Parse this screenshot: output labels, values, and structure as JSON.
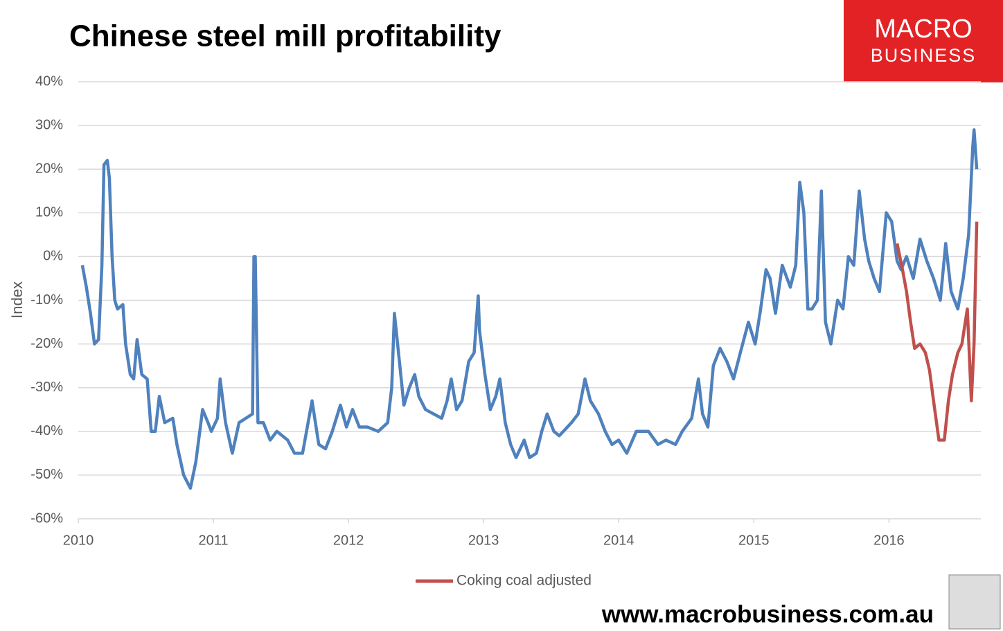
{
  "chart_data": {
    "type": "line",
    "title": "Chinese steel mill profitability",
    "ylabel": "Index",
    "xlim": [
      2010,
      2016.68
    ],
    "xticks": [
      2010,
      2011,
      2012,
      2013,
      2014,
      2015,
      2016
    ],
    "ylim": [
      -60,
      40
    ],
    "yticks": [
      {
        "value": 40,
        "label": "40%"
      },
      {
        "value": 30,
        "label": "30%"
      },
      {
        "value": 20,
        "label": "20%"
      },
      {
        "value": 10,
        "label": "10%"
      },
      {
        "value": 0,
        "label": "0%"
      },
      {
        "value": -10,
        "label": "-10%"
      },
      {
        "value": -20,
        "label": "-20%"
      },
      {
        "value": -30,
        "label": "-30%"
      },
      {
        "value": -40,
        "label": "-40%"
      },
      {
        "value": -50,
        "label": "-50%"
      },
      {
        "value": -60,
        "label": "-60%"
      }
    ],
    "grid": true,
    "legend": "bottom",
    "series": [
      {
        "color": "#4f81bd",
        "x": [
          2010.03,
          2010.06,
          2010.09,
          2010.12,
          2010.15,
          2010.175,
          2010.19,
          2010.215,
          2010.23,
          2010.25,
          2010.27,
          2010.29,
          2010.33,
          2010.35,
          2010.385,
          2010.41,
          2010.435,
          2010.47,
          2010.51,
          2010.54,
          2010.57,
          2010.6,
          2010.64,
          2010.7,
          2010.73,
          2010.78,
          2010.83,
          2010.87,
          2010.92,
          2010.96,
          2010.985,
          2011.03,
          2011.05,
          2011.09,
          2011.14,
          2011.19,
          2011.24,
          2011.29,
          2011.3,
          2011.31,
          2011.33,
          2011.37,
          2011.42,
          2011.47,
          2011.55,
          2011.6,
          2011.66,
          2011.73,
          2011.78,
          2011.83,
          2011.88,
          2011.94,
          2011.985,
          2012.03,
          2012.08,
          2012.14,
          2012.22,
          2012.29,
          2012.32,
          2012.34,
          2012.37,
          2012.41,
          2012.45,
          2012.49,
          2012.52,
          2012.57,
          2012.63,
          2012.69,
          2012.73,
          2012.76,
          2012.8,
          2012.84,
          2012.89,
          2012.93,
          2012.96,
          2012.97,
          2013.01,
          2013.05,
          2013.09,
          2013.12,
          2013.16,
          2013.2,
          2013.24,
          2013.3,
          2013.34,
          2013.39,
          2013.43,
          2013.47,
          2013.52,
          2013.56,
          2013.65,
          2013.7,
          2013.75,
          2013.79,
          2013.85,
          2013.9,
          2013.95,
          2014.0,
          2014.06,
          2014.13,
          2014.22,
          2014.29,
          2014.35,
          2014.42,
          2014.47,
          2014.54,
          2014.59,
          2014.62,
          2014.66,
          2014.7,
          2014.75,
          2014.8,
          2014.85,
          2014.9,
          2014.96,
          2015.01,
          2015.05,
          2015.09,
          2015.12,
          2015.16,
          2015.21,
          2015.27,
          2015.31,
          2015.34,
          2015.37,
          2015.4,
          2015.43,
          2015.47,
          2015.5,
          2015.53,
          2015.57,
          2015.62,
          2015.66,
          2015.7,
          2015.74,
          2015.78,
          2015.82,
          2015.85,
          2015.89,
          2015.93,
          2015.98,
          2016.02,
          2016.06,
          2016.09,
          2016.13,
          2016.18,
          2016.23,
          2016.28,
          2016.33,
          2016.38,
          2016.42,
          2016.46,
          2016.51,
          2016.55,
          2016.59,
          2016.62,
          2016.63,
          2016.65
        ],
        "values": [
          -2,
          -7,
          -13,
          -20,
          -19,
          -2,
          21,
          22,
          18,
          0,
          -10,
          -12,
          -11,
          -20,
          -27,
          -28,
          -19,
          -27,
          -28,
          -40,
          -40,
          -32,
          -38,
          -37,
          -43,
          -50,
          -53,
          -47,
          -35,
          -38,
          -40,
          -37,
          -28,
          -38,
          -45,
          -38,
          -37,
          -36,
          0,
          0,
          -38,
          -38,
          -42,
          -40,
          -42,
          -45,
          -45,
          -33,
          -43,
          -44,
          -40,
          -34,
          -39,
          -35,
          -39,
          -39,
          -40,
          -38,
          -30,
          -13,
          -22,
          -34,
          -30,
          -27,
          -32,
          -35,
          -36,
          -37,
          -33,
          -28,
          -35,
          -33,
          -24,
          -22,
          -9,
          -17,
          -27,
          -35,
          -32,
          -28,
          -38,
          -43,
          -46,
          -42,
          -46,
          -45,
          -40,
          -36,
          -40,
          -41,
          -38,
          -36,
          -28,
          -33,
          -36,
          -40,
          -43,
          -42,
          -45,
          -40,
          -40,
          -43,
          -42,
          -43,
          -40,
          -37,
          -28,
          -36,
          -39,
          -25,
          -21,
          -24,
          -28,
          -22,
          -15,
          -20,
          -12,
          -3,
          -5,
          -13,
          -2,
          -7,
          -2,
          17,
          10,
          -12,
          -12,
          -10,
          15,
          -15,
          -20,
          -10,
          -12,
          0,
          -2,
          15,
          4,
          -1,
          -5,
          -8,
          10,
          8,
          -1,
          -3,
          0,
          -5,
          4,
          -1,
          -5,
          -10,
          3,
          -8,
          -12,
          -5,
          5,
          25,
          29,
          20
        ]
      },
      {
        "name": "Coking coal adjusted",
        "color": "#c0504d",
        "x": [
          2016.06,
          2016.1,
          2016.13,
          2016.16,
          2016.19,
          2016.23,
          2016.27,
          2016.3,
          2016.33,
          2016.37,
          2016.41,
          2016.44,
          2016.47,
          2016.51,
          2016.54,
          2016.58,
          2016.61,
          2016.63,
          2016.65
        ],
        "values": [
          3,
          -3,
          -8,
          -15,
          -21,
          -20,
          -22,
          -26,
          -33,
          -42,
          -42,
          -33,
          -27,
          -22,
          -20,
          -12,
          -33,
          -20,
          8
        ]
      }
    ]
  },
  "logo": {
    "line1": "MACRO",
    "line2": "BUSINESS"
  },
  "footer": "www.macrobusiness.com.au"
}
